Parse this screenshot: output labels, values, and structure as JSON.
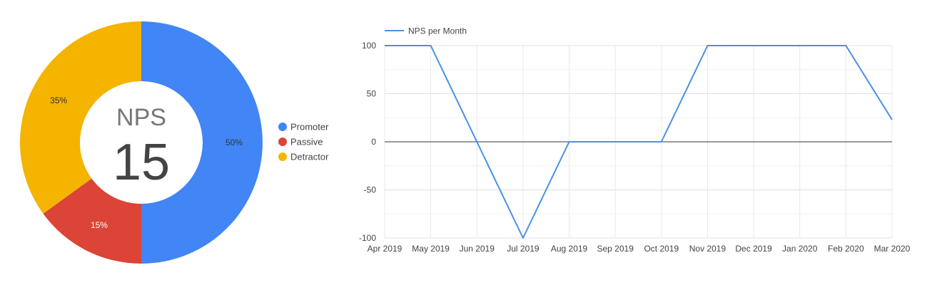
{
  "chart_data": [
    {
      "type": "pie",
      "center_label": "NPS",
      "center_value": "15",
      "categories": [
        "Promoter",
        "Passive",
        "Detractor"
      ],
      "values": [
        50,
        15,
        35
      ],
      "labels": [
        "50%",
        "15%",
        "35%"
      ],
      "colors": [
        "#4285f4",
        "#db4437",
        "#f4b400"
      ],
      "legend": "right"
    },
    {
      "type": "line",
      "series": [
        {
          "name": "NPS per Month",
          "color": "#4a90e2",
          "values": [
            100,
            100,
            0,
            -100,
            0,
            0,
            0,
            100,
            100,
            100,
            100,
            23
          ]
        }
      ],
      "categories": [
        "Apr 2019",
        "May 2019",
        "Jun 2019",
        "Jul 2019",
        "Aug 2019",
        "Sep 2019",
        "Oct 2019",
        "Nov 2019",
        "Dec 2019",
        "Jan 2020",
        "Feb 2020",
        "Mar 2020"
      ],
      "yticks": [
        "100",
        "50",
        "0",
        "-50",
        "-100"
      ],
      "ylim": [
        -100,
        100
      ],
      "grid": true,
      "legend": "top-left"
    }
  ]
}
